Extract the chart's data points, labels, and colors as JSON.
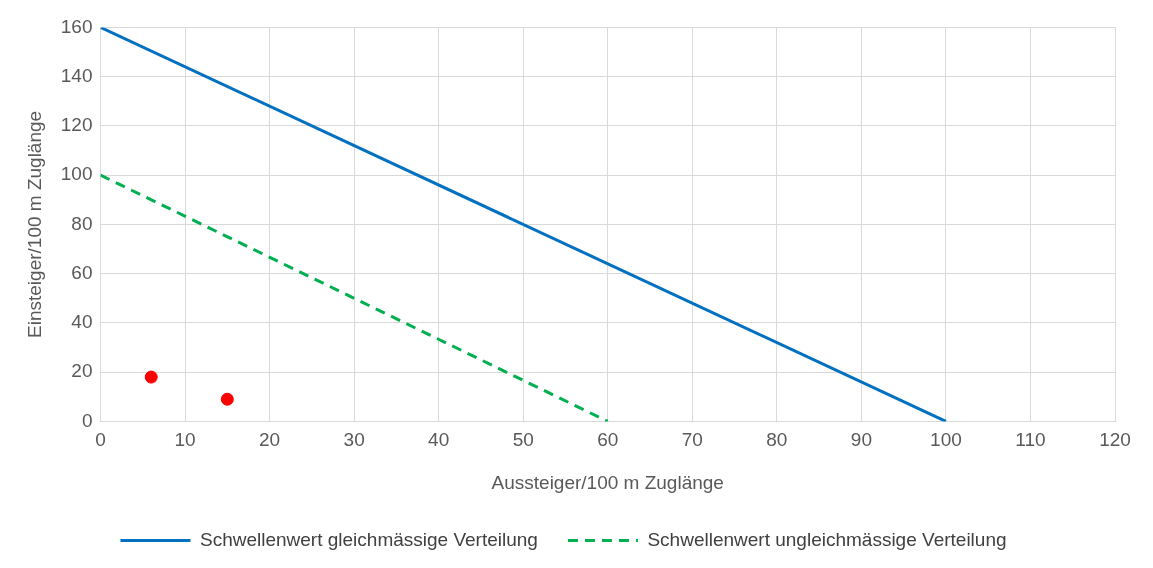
{
  "chart_data": {
    "type": "line",
    "xlabel": "Aussteiger/100 m Zuglänge",
    "ylabel": "Einsteiger/100 m Zuglänge",
    "xlim": [
      0,
      120
    ],
    "xticks": [
      0,
      10,
      20,
      30,
      40,
      50,
      60,
      70,
      80,
      90,
      100,
      110,
      120
    ],
    "ylim": [
      0,
      160
    ],
    "yticks": [
      0,
      20,
      40,
      60,
      80,
      100,
      120,
      140,
      160
    ],
    "grid": true,
    "legend": "bottom",
    "series": [
      {
        "name": "Schwellenwert gleichmässige Verteilung",
        "type": "line",
        "color": "#0070c0",
        "line_style": "solid",
        "marker": "none",
        "x": [
          0,
          100
        ],
        "values": [
          160,
          0
        ]
      },
      {
        "name": "Schwellenwert ungleichmässige Verteilung",
        "type": "line",
        "color": "#00b050",
        "line_style": "dashed",
        "marker": "none",
        "x": [
          0,
          60
        ],
        "values": [
          100,
          0
        ]
      },
      {
        "type": "scatter",
        "color": "#ff0000",
        "marker": "circle",
        "x": [
          6,
          15
        ],
        "values": [
          18,
          9
        ]
      }
    ]
  }
}
